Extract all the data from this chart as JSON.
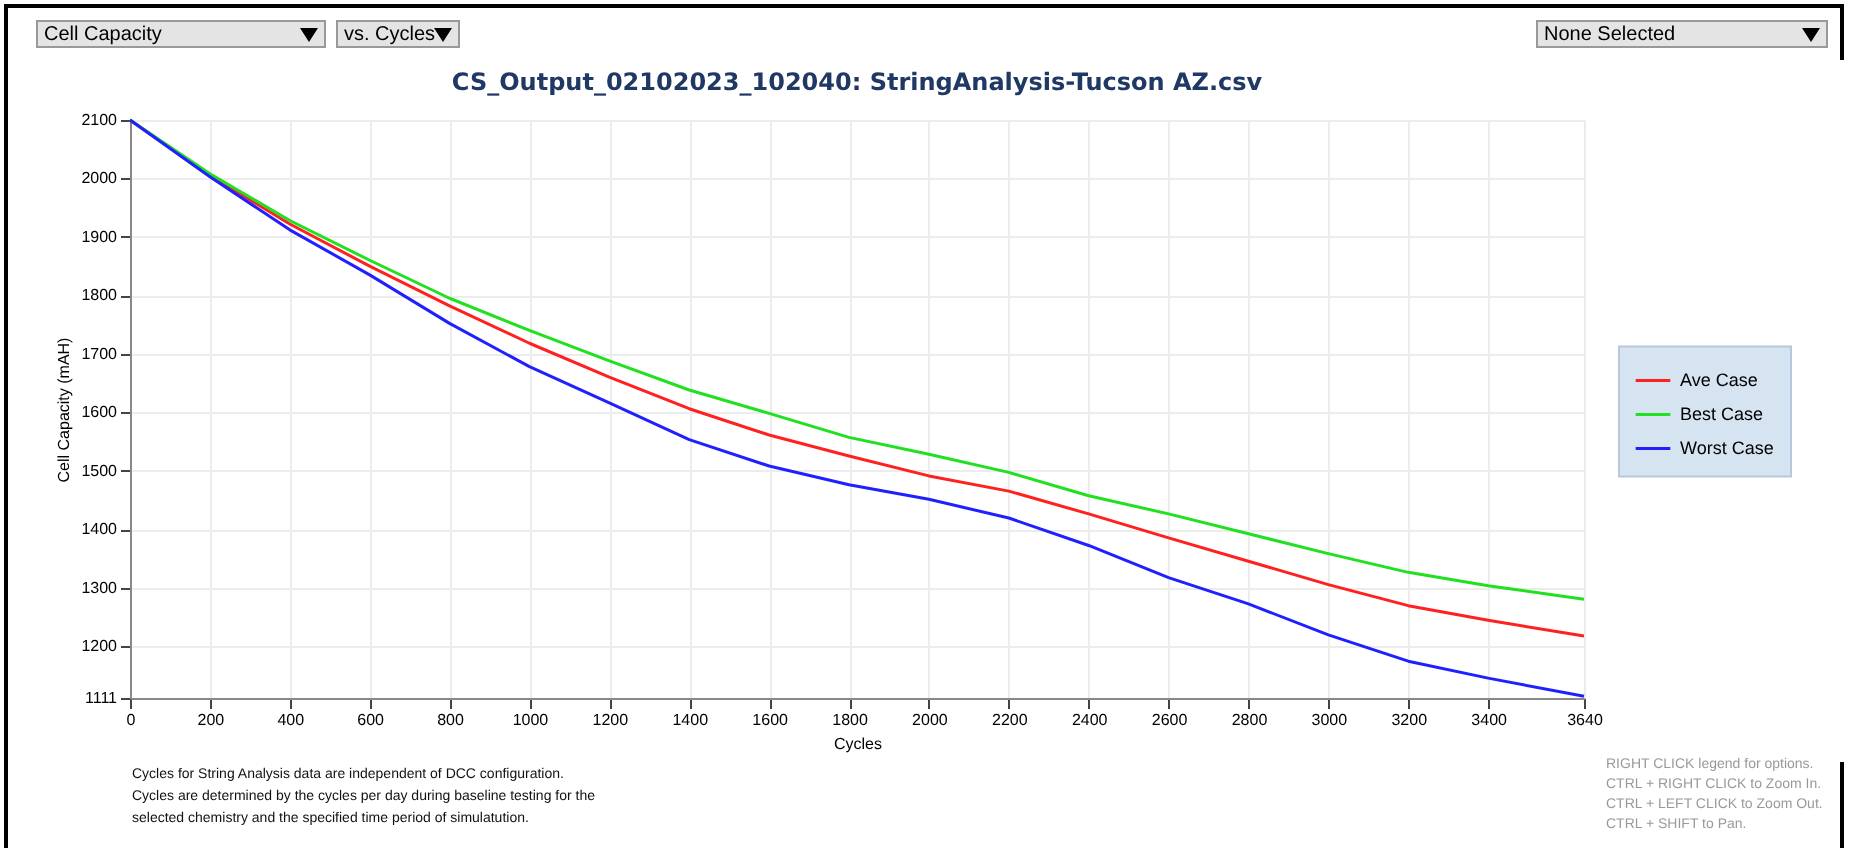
{
  "chart_data": {
    "type": "line",
    "title": "CS_Output_02102023_102040: StringAnalysis-Tucson AZ.csv",
    "xlabel": "Cycles",
    "ylabel": "Cell Capacity (mAH)",
    "xlim": [
      0,
      3640
    ],
    "xticks": [
      0,
      200,
      400,
      600,
      800,
      1000,
      1200,
      1400,
      1600,
      1800,
      2000,
      2200,
      2400,
      2600,
      2800,
      3000,
      3200,
      3400,
      3640
    ],
    "ylim": [
      1111,
      2100
    ],
    "yticks": [
      1111,
      1200,
      1300,
      1400,
      1500,
      1600,
      1700,
      1800,
      1900,
      2000,
      2100
    ],
    "x": [
      0,
      200,
      400,
      600,
      800,
      1000,
      1200,
      1400,
      1600,
      1800,
      2000,
      2200,
      2400,
      2600,
      2800,
      3000,
      3200,
      3400,
      3640
    ],
    "series": [
      {
        "name": "Ave Case",
        "color": "#ff2020",
        "values": [
          2100,
          2005,
          1922,
          1850,
          1782,
          1718,
          1660,
          1606,
          1561,
          1525,
          1491,
          1465,
          1426,
          1385,
          1345,
          1305,
          1269,
          1244,
          1217
        ]
      },
      {
        "name": "Best Case",
        "color": "#20e020",
        "values": [
          2100,
          2008,
          1928,
          1860,
          1795,
          1740,
          1688,
          1638,
          1598,
          1557,
          1528,
          1497,
          1457,
          1426,
          1392,
          1358,
          1326,
          1303,
          1280
        ]
      },
      {
        "name": "Worst Case",
        "color": "#2020ff",
        "values": [
          2100,
          2003,
          1912,
          1835,
          1752,
          1678,
          1616,
          1553,
          1508,
          1476,
          1451,
          1419,
          1372,
          1317,
          1272,
          1219,
          1174,
          1145,
          1114
        ]
      }
    ],
    "grid": true,
    "legend": "right",
    "annotations": [
      "Cell Capacity",
      "vs. Cycles",
      "None Selected",
      "Cycles for String Analysis data are independent of DCC configuration.",
      "Cycles are determined by the cycles per day during baseline testing for the selected chemistry and the specified time period of simulatution.",
      "RIGHT CLICK legend for options.",
      "CTRL + RIGHT CLICK to Zoom In.",
      "CTRL + LEFT CLICK to Zoom Out.",
      "CTRL + SHIFT to Pan."
    ]
  }
}
